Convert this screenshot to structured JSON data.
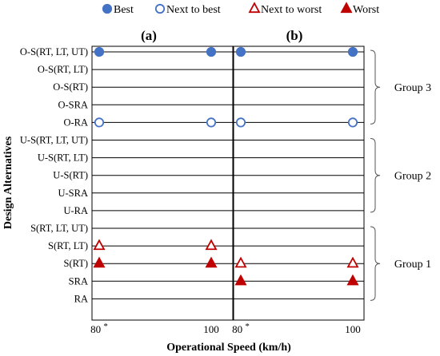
{
  "legend": [
    {
      "label": "Best",
      "marker": "filled-circle",
      "color": "#4472c4"
    },
    {
      "label": "Next to best",
      "marker": "open-circle",
      "color": "#4472c4"
    },
    {
      "label": "Next to worst",
      "marker": "open-triangle",
      "color": "#c00000"
    },
    {
      "label": "Worst",
      "marker": "filled-triangle",
      "color": "#c00000"
    }
  ],
  "y_axis_label": "Design Alternatives",
  "x_axis_label": "Operational Speed (km/h)",
  "chart_data": [
    {
      "type": "scatter",
      "title": "(a)",
      "xlabel": "Operational Speed (km/h)",
      "ylabel": "Design Alternatives",
      "x_ticks": [
        "80 *",
        "100"
      ],
      "x": [
        80,
        100
      ],
      "categories": [
        "O-S(RT, LT, UT)",
        "O-S(RT, LT)",
        "O-S(RT)",
        "O-SRA",
        "O-RA",
        "U-S(RT, LT, UT)",
        "U-S(RT, LT)",
        "U-S(RT)",
        "U-SRA",
        "U-RA",
        "S(RT, LT, UT)",
        "S(RT, LT)",
        "S(RT)",
        "SRA",
        "RA"
      ],
      "series": [
        {
          "name": "Best",
          "points": [
            {
              "x": 80,
              "y": "O-S(RT, LT, UT)"
            },
            {
              "x": 100,
              "y": "O-S(RT, LT, UT)"
            }
          ]
        },
        {
          "name": "Next to best",
          "points": [
            {
              "x": 80,
              "y": "O-RA"
            },
            {
              "x": 100,
              "y": "O-RA"
            }
          ]
        },
        {
          "name": "Next to worst",
          "points": [
            {
              "x": 80,
              "y": "S(RT, LT)"
            },
            {
              "x": 100,
              "y": "S(RT, LT)"
            }
          ]
        },
        {
          "name": "Worst",
          "points": [
            {
              "x": 80,
              "y": "S(RT)"
            },
            {
              "x": 100,
              "y": "S(RT)"
            }
          ]
        }
      ]
    },
    {
      "type": "scatter",
      "title": "(b)",
      "xlabel": "Operational Speed (km/h)",
      "x_ticks": [
        "80 *",
        "100"
      ],
      "x": [
        80,
        100
      ],
      "categories": [
        "O-S(RT, LT, UT)",
        "O-S(RT, LT)",
        "O-S(RT)",
        "O-SRA",
        "O-RA",
        "U-S(RT, LT, UT)",
        "U-S(RT, LT)",
        "U-S(RT)",
        "U-SRA",
        "U-RA",
        "S(RT, LT, UT)",
        "S(RT, LT)",
        "S(RT)",
        "SRA",
        "RA"
      ],
      "groups": [
        {
          "label": "Group 3",
          "from": "O-S(RT, LT, UT)",
          "to": "O-RA"
        },
        {
          "label": "Group 2",
          "from": "U-S(RT, LT, UT)",
          "to": "U-RA"
        },
        {
          "label": "Group 1",
          "from": "S(RT, LT, UT)",
          "to": "RA"
        }
      ],
      "series": [
        {
          "name": "Best",
          "points": [
            {
              "x": 80,
              "y": "O-S(RT, LT, UT)"
            },
            {
              "x": 100,
              "y": "O-S(RT, LT, UT)"
            }
          ]
        },
        {
          "name": "Next to best",
          "points": [
            {
              "x": 80,
              "y": "O-RA"
            },
            {
              "x": 100,
              "y": "O-RA"
            }
          ]
        },
        {
          "name": "Next to worst",
          "points": [
            {
              "x": 80,
              "y": "S(RT)"
            },
            {
              "x": 100,
              "y": "S(RT)"
            }
          ]
        },
        {
          "name": "Worst",
          "points": [
            {
              "x": 80,
              "y": "SRA"
            },
            {
              "x": 100,
              "y": "SRA"
            }
          ]
        }
      ]
    }
  ]
}
